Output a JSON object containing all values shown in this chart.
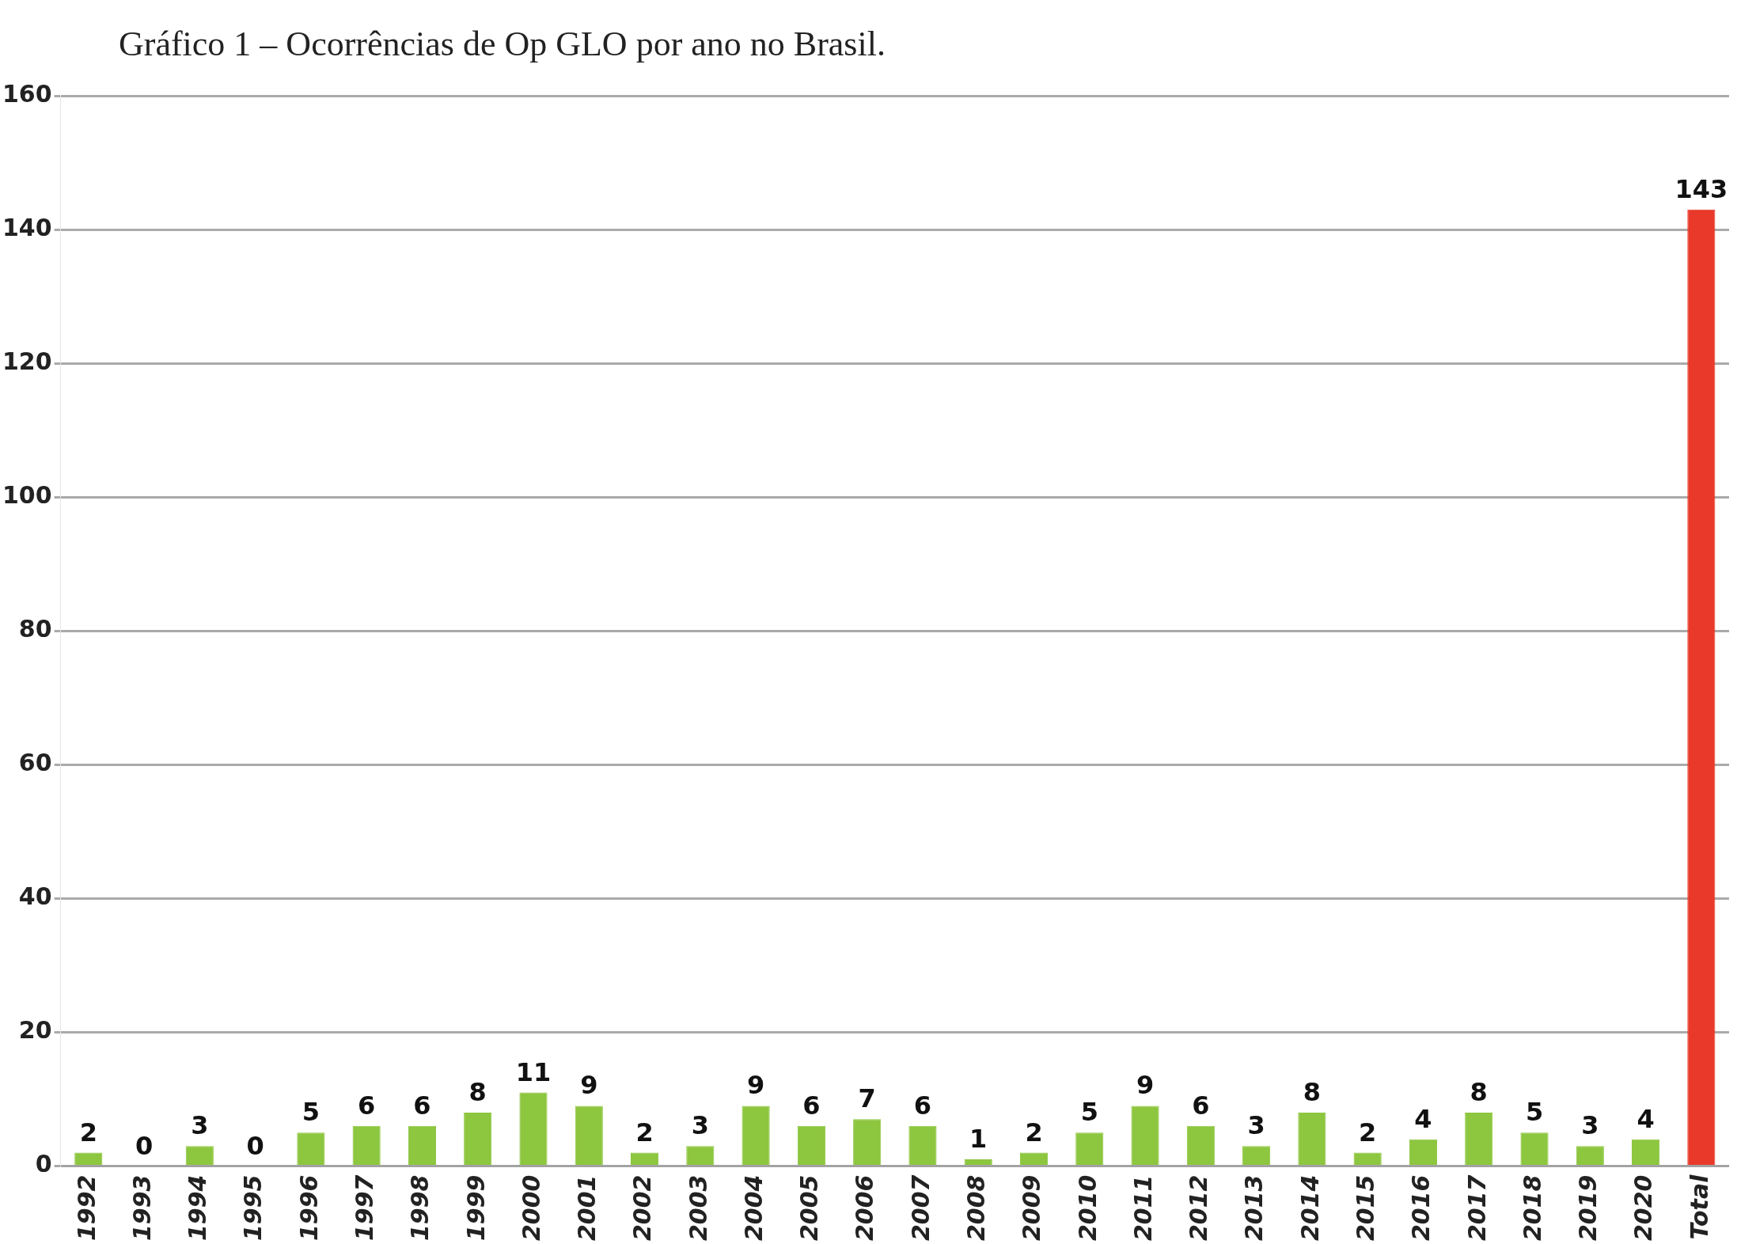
{
  "chart_data": {
    "type": "bar",
    "title": "Gráfico 1 – Ocorrências de Op GLO por ano no Brasil.",
    "categories": [
      "1992",
      "1993",
      "1994",
      "1995",
      "1996",
      "1997",
      "1998",
      "1999",
      "2000",
      "2001",
      "2002",
      "2003",
      "2004",
      "2005",
      "2006",
      "2007",
      "2008",
      "2009",
      "2010",
      "2011",
      "2012",
      "2013",
      "2014",
      "2015",
      "2016",
      "2017",
      "2018",
      "2019",
      "2020",
      "Total"
    ],
    "values": [
      2,
      0,
      3,
      0,
      5,
      6,
      6,
      8,
      11,
      9,
      2,
      3,
      9,
      6,
      7,
      6,
      1,
      2,
      5,
      9,
      6,
      3,
      8,
      2,
      4,
      8,
      5,
      3,
      4,
      143
    ],
    "colors": [
      "#8dc63f",
      "#8dc63f",
      "#8dc63f",
      "#8dc63f",
      "#8dc63f",
      "#8dc63f",
      "#8dc63f",
      "#8dc63f",
      "#8dc63f",
      "#8dc63f",
      "#8dc63f",
      "#8dc63f",
      "#8dc63f",
      "#8dc63f",
      "#8dc63f",
      "#8dc63f",
      "#8dc63f",
      "#8dc63f",
      "#8dc63f",
      "#8dc63f",
      "#8dc63f",
      "#8dc63f",
      "#8dc63f",
      "#8dc63f",
      "#8dc63f",
      "#8dc63f",
      "#8dc63f",
      "#8dc63f",
      "#8dc63f",
      "#e8392a"
    ],
    "ylim": [
      0,
      160
    ],
    "yticks": [
      0,
      20,
      40,
      60,
      80,
      100,
      120,
      140,
      160
    ],
    "grid": "y",
    "data_labels": true
  }
}
